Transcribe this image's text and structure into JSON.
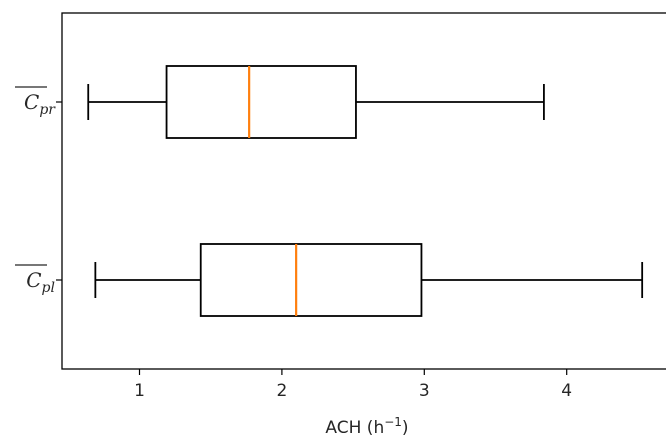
{
  "chart_data": {
    "type": "boxplot",
    "orientation": "horizontal",
    "title": "",
    "xlabel": "ACH (h⁻¹)",
    "ylabel": "",
    "xlim": [
      0.45,
      4.55
    ],
    "xticks": [
      1,
      2,
      3,
      4
    ],
    "grid": false,
    "median_color": "#ff7f0e",
    "box_color": "#000000",
    "categories": [
      {
        "key": "C_pr",
        "label_base": "C",
        "label_sub": "pr",
        "overline": true,
        "whisker_low": 0.64,
        "q1": 1.19,
        "median": 1.77,
        "q3": 2.52,
        "whisker_high": 3.84
      },
      {
        "key": "C_pl",
        "label_base": "C",
        "label_sub": "pl",
        "overline": true,
        "whisker_low": 0.69,
        "q1": 1.43,
        "median": 2.1,
        "q3": 2.98,
        "whisker_high": 4.53
      }
    ]
  }
}
